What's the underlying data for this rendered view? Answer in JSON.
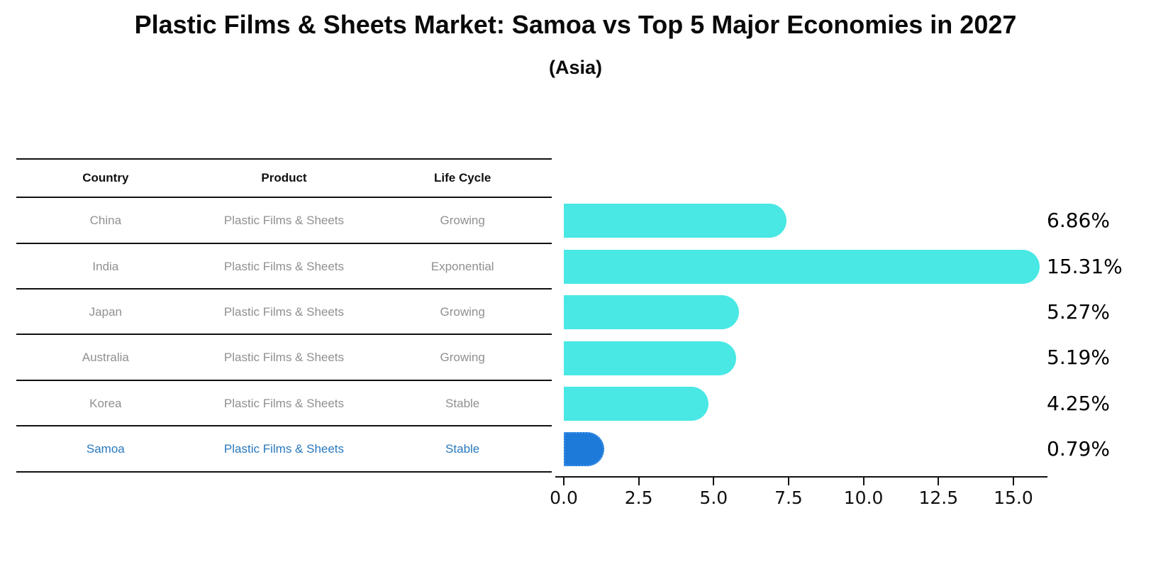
{
  "title": "Plastic Films & Sheets Market: Samoa vs Top 5 Major Economies in 2027",
  "subtitle": "(Asia)",
  "table": {
    "headers": [
      "Country",
      "Product",
      "Life Cycle"
    ]
  },
  "chart_data": {
    "type": "bar",
    "orientation": "horizontal",
    "title": "Plastic Films & Sheets Market: Samoa vs Top 5 Major Economies in 2027 (Asia)",
    "xlabel": "",
    "ylabel": "",
    "xlim": [
      0,
      16.4
    ],
    "x_tick_labels": [
      "0.0",
      "2.5",
      "5.0",
      "7.5",
      "10.0",
      "12.5",
      "15.0"
    ],
    "grid": false,
    "legend": false,
    "categories": [
      "China",
      "India",
      "Japan",
      "Australia",
      "Korea",
      "Samoa"
    ],
    "values": [
      6.86,
      15.31,
      5.27,
      5.19,
      4.25,
      0.79
    ],
    "rows": [
      {
        "country": "China",
        "product": "Plastic Films & Sheets",
        "life_cycle": "Growing",
        "value": 6.86,
        "value_label": "6.86%",
        "highlighted": false
      },
      {
        "country": "India",
        "product": "Plastic Films & Sheets",
        "life_cycle": "Exponential",
        "value": 15.31,
        "value_label": "15.31%",
        "highlighted": false
      },
      {
        "country": "Japan",
        "product": "Plastic Films & Sheets",
        "life_cycle": "Growing",
        "value": 5.27,
        "value_label": "5.27%",
        "highlighted": false
      },
      {
        "country": "Australia",
        "product": "Plastic Films & Sheets",
        "life_cycle": "Growing",
        "value": 5.19,
        "value_label": "5.19%",
        "highlighted": false
      },
      {
        "country": "Korea",
        "product": "Plastic Films & Sheets",
        "life_cycle": "Stable",
        "value": 4.25,
        "value_label": "4.25%",
        "highlighted": false
      },
      {
        "country": "Samoa",
        "product": "Plastic Films & Sheets",
        "life_cycle": "Stable",
        "value": 0.79,
        "value_label": "0.79%",
        "highlighted": true
      }
    ],
    "colors": {
      "bar": "#49e8e4",
      "highlight_bar": "#1e7ad9",
      "highlight_text": "#2878be",
      "cell_text": "#909090",
      "header_text": "#111111",
      "axis": "#111111"
    }
  }
}
